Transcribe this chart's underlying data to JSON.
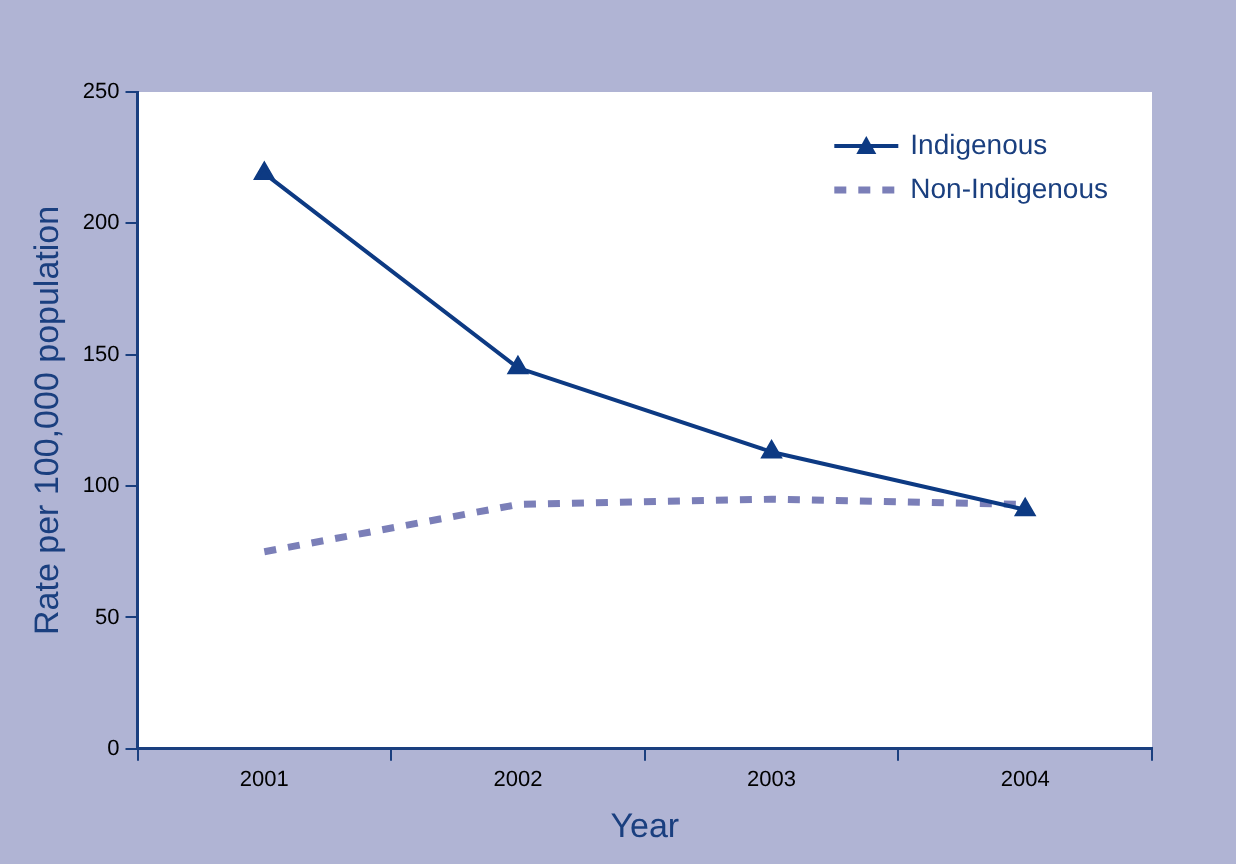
{
  "chart_data": {
    "type": "line",
    "xlabel": "Year",
    "ylabel": "Rate per 100,000 population",
    "categories": [
      "2001",
      "2002",
      "2003",
      "2004"
    ],
    "series": [
      {
        "name": "Indigenous",
        "color": "#0d3a83",
        "values": [
          219,
          145,
          113,
          91
        ],
        "marker": "triangle",
        "line_style": "solid"
      },
      {
        "name": "Non-Indigenous",
        "color": "#7b7fb8",
        "values": [
          75,
          93,
          95,
          93
        ],
        "marker": "none",
        "line_style": "dashed"
      }
    ],
    "ylim": [
      0,
      250
    ],
    "yticks": [
      0,
      50,
      100,
      150,
      200,
      250
    ],
    "grid": false,
    "legend": "top right"
  }
}
